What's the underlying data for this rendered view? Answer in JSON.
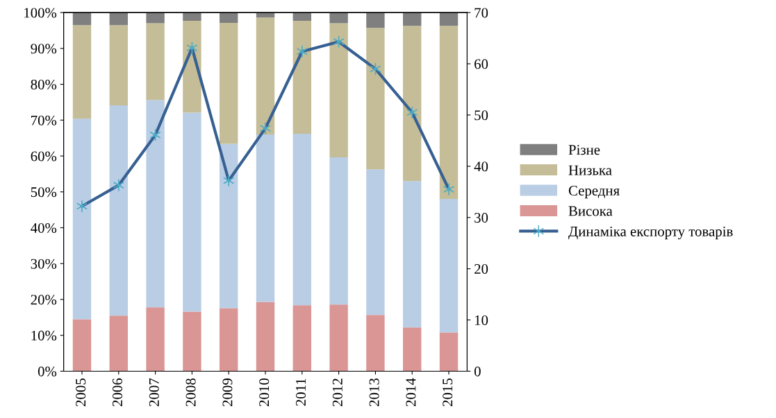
{
  "chart_data": {
    "type": "bar",
    "stacked": true,
    "categories": [
      "2005",
      "2006",
      "2007",
      "2008",
      "2009",
      "2010",
      "2011",
      "2012",
      "2013",
      "2014",
      "2015"
    ],
    "series": [
      {
        "name": "Висока",
        "color": "#d99694",
        "values": [
          14.5,
          15.5,
          17.8,
          16.6,
          17.6,
          19.3,
          18.4,
          18.6,
          15.7,
          12.2,
          10.8
        ]
      },
      {
        "name": "Середня",
        "color": "#b9cde5",
        "values": [
          55.9,
          58.6,
          57.8,
          55.5,
          45.8,
          46.7,
          47.8,
          41.0,
          40.6,
          40.8,
          37.2
        ]
      },
      {
        "name": "Низька",
        "color": "#c4bd97",
        "values": [
          26.1,
          22.4,
          21.4,
          25.6,
          33.7,
          32.6,
          31.5,
          37.4,
          39.4,
          43.3,
          48.3
        ]
      },
      {
        "name": "Різне",
        "color": "#7f7f7f",
        "values": [
          3.5,
          3.5,
          3.0,
          2.3,
          2.9,
          1.4,
          2.3,
          3.0,
          4.3,
          3.7,
          3.7
        ]
      },
      {
        "name": "Динаміка експорту товарів",
        "type": "line",
        "axis": "y2",
        "color": "#376092",
        "marker": "cross",
        "values": [
          32.2,
          36.3,
          46.1,
          63.1,
          37.2,
          47.4,
          62.4,
          64.3,
          59.0,
          50.5,
          35.5
        ]
      }
    ],
    "ylim": [
      0,
      100
    ],
    "yticks": [
      {
        "value": 0,
        "label": "0%"
      },
      {
        "value": 10,
        "label": "10%"
      },
      {
        "value": 20,
        "label": "20%"
      },
      {
        "value": 30,
        "label": "30%"
      },
      {
        "value": 40,
        "label": "40%"
      },
      {
        "value": 50,
        "label": "50%"
      },
      {
        "value": 60,
        "label": "60%"
      },
      {
        "value": 70,
        "label": "70%"
      },
      {
        "value": 80,
        "label": "80%"
      },
      {
        "value": 90,
        "label": "90%"
      },
      {
        "value": 100,
        "label": "100%"
      }
    ],
    "y2lim": [
      0,
      70
    ],
    "y2ticks": [
      0,
      10,
      20,
      30,
      40,
      50,
      60,
      70
    ],
    "grid": false,
    "legend": "right"
  }
}
